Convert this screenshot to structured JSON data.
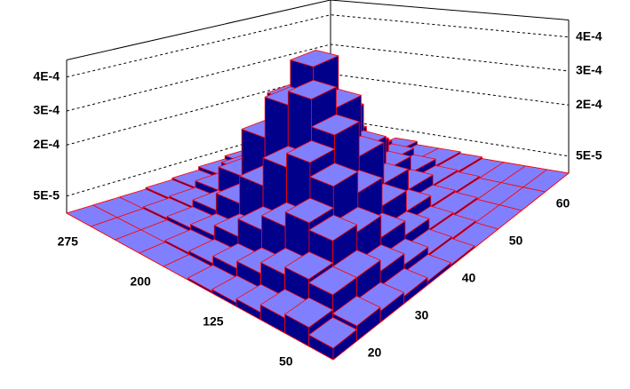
{
  "chart_data": {
    "type": "bar3d",
    "xbins": [
      25,
      50,
      75,
      100,
      125,
      150,
      175,
      200,
      225,
      250,
      275,
      300
    ],
    "ybins": [
      15,
      20,
      25,
      30,
      35,
      40,
      45,
      50,
      55,
      60,
      65
    ],
    "xlim": [
      25,
      300
    ],
    "ylim": [
      15,
      65
    ],
    "zlim": [
      0,
      0.00045
    ],
    "xticks": [
      50,
      125,
      200,
      275
    ],
    "yticks": [
      20,
      30,
      40,
      50,
      60
    ],
    "zticks": [
      {
        "value": 5e-05,
        "label": "5E-5"
      },
      {
        "value": 0.0002,
        "label": "2E-4"
      },
      {
        "value": 0.0003,
        "label": "3E-4"
      },
      {
        "value": 0.0004,
        "label": "4E-4"
      }
    ],
    "color": "#8080ff",
    "side_color": "#00008b",
    "edge_color": "#ff0000",
    "z": [
      [
        3e-05,
        4e-05,
        3e-05,
        2e-05,
        1e-05,
        5e-06,
        0,
        0,
        0,
        0
      ],
      [
        5e-05,
        9e-05,
        9e-05,
        6e-05,
        3e-05,
        1e-05,
        5e-06,
        0,
        0,
        0
      ],
      [
        4e-05,
        0.0001,
        0.00016,
        0.00014,
        8e-05,
        4e-05,
        1e-05,
        5e-06,
        0,
        0
      ],
      [
        2e-05,
        8e-05,
        0.00018,
        0.00024,
        0.00018,
        0.0001,
        4e-05,
        1e-05,
        5e-06,
        0
      ],
      [
        1e-05,
        5e-05,
        0.00014,
        0.00028,
        0.00032,
        0.00022,
        0.0001,
        4e-05,
        1e-05,
        5e-06
      ],
      [
        5e-06,
        3e-05,
        0.0001,
        0.00024,
        0.0004,
        0.00034,
        0.00018,
        8e-05,
        3e-05,
        1e-05
      ],
      [
        0,
        1e-05,
        5e-05,
        0.00016,
        0.00036,
        0.00044,
        0.00026,
        0.00012,
        5e-05,
        1e-05
      ],
      [
        0,
        5e-06,
        2e-05,
        8e-05,
        0.00024,
        0.00032,
        0.00028,
        0.00014,
        6e-05,
        2e-05
      ],
      [
        0,
        0,
        1e-05,
        3e-05,
        0.0001,
        0.00016,
        0.00018,
        0.00012,
        5e-05,
        1e-05
      ],
      [
        0,
        0,
        5e-06,
        1e-05,
        3e-05,
        6e-05,
        8e-05,
        6e-05,
        3e-05,
        5e-06
      ],
      [
        0,
        0,
        0,
        5e-06,
        1e-05,
        2e-05,
        3e-05,
        2e-05,
        1e-05,
        0
      ]
    ]
  }
}
